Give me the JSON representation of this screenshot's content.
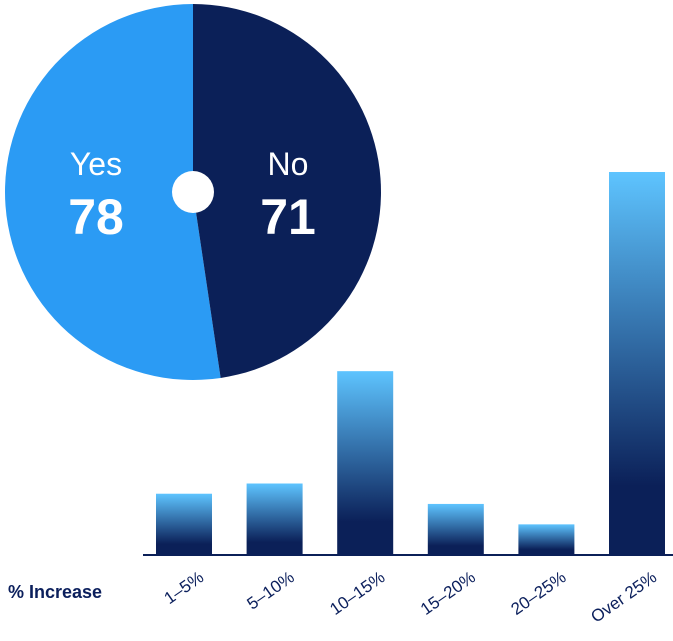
{
  "chart_data": [
    {
      "type": "pie",
      "slices": [
        {
          "label": "Yes",
          "value": 78,
          "color": "#2b9bf4"
        },
        {
          "label": "No",
          "value": 71,
          "color": "#0b2058"
        }
      ]
    },
    {
      "type": "bar",
      "xlabel": "% Increase",
      "categories": [
        "1–5%",
        "5–10%",
        "10–15%",
        "15–20%",
        "20–25%",
        "Over 25%"
      ],
      "values": [
        12,
        14,
        36,
        10,
        6,
        75
      ],
      "ylim": [
        0,
        75
      ],
      "colors": {
        "top": "#5ec4ff",
        "bottom": "#0b2058",
        "axis": "#0b2058"
      },
      "grid": false
    }
  ]
}
